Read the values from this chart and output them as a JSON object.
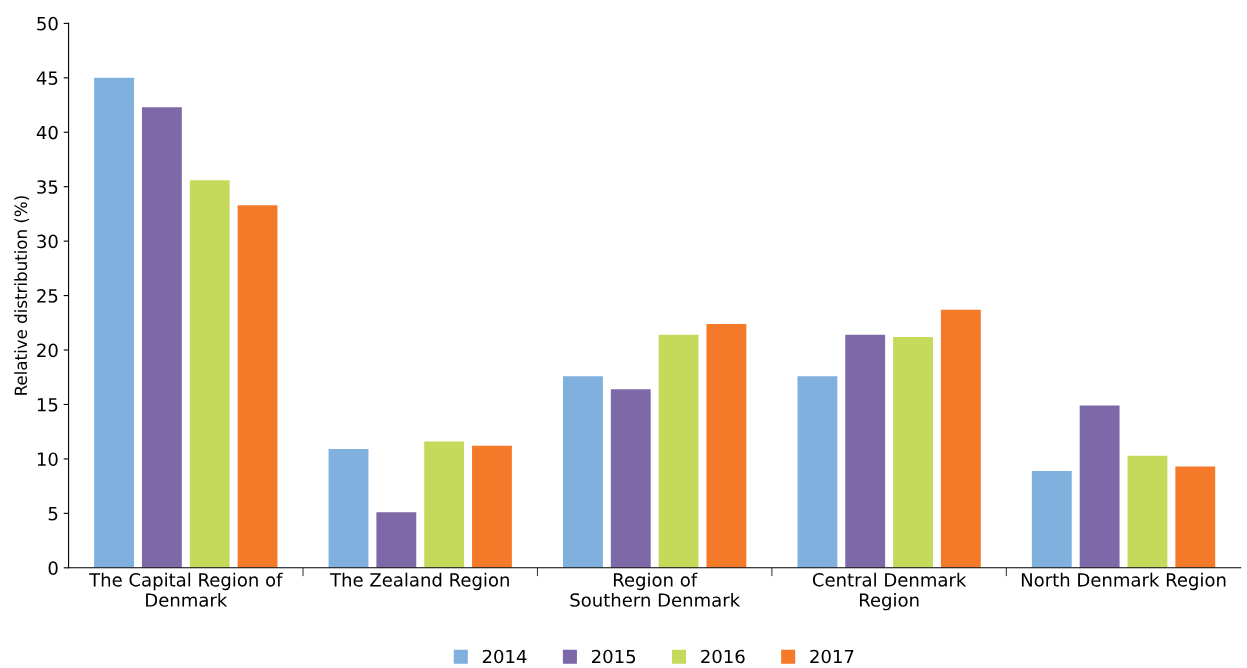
{
  "chart_data": {
    "type": "bar",
    "ylabel": "Relative distribution (%)",
    "categories": [
      "The Capital Region of\nDenmark",
      "The Zealand Region",
      "Region of\nSouthern Denmark",
      "Central Denmark\nRegion",
      "North Denmark Region"
    ],
    "series": [
      {
        "name": "2014",
        "color": "#7fb0de",
        "values": [
          45.0,
          10.9,
          17.6,
          17.6,
          8.9
        ]
      },
      {
        "name": "2015",
        "color": "#7d68a8",
        "values": [
          42.3,
          5.1,
          16.4,
          21.4,
          14.9
        ]
      },
      {
        "name": "2016",
        "color": "#c5da5a",
        "values": [
          35.6,
          11.6,
          21.4,
          21.2,
          10.3
        ]
      },
      {
        "name": "2017",
        "color": "#f47a2a",
        "values": [
          33.3,
          11.2,
          22.4,
          23.7,
          9.3
        ]
      }
    ],
    "ylim": [
      0,
      50
    ],
    "yticks": [
      0,
      5,
      10,
      15,
      20,
      25,
      30,
      35,
      40,
      45,
      50
    ],
    "grid": false,
    "legend": "bottom"
  }
}
